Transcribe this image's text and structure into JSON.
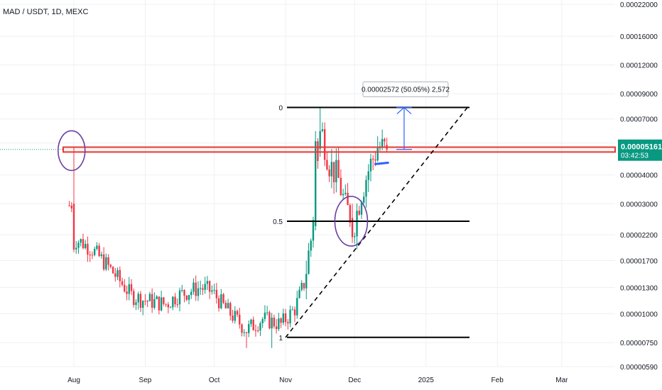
{
  "header": {
    "symbol_title": "MAD / USDT, 1D, MEXC"
  },
  "colors": {
    "up": "#089981",
    "down": "#f23645",
    "grid": "#eef0f3",
    "price_badge": "#089981",
    "zone": "#e53935",
    "circle": "#6a3fa0",
    "measure": "#2962ff"
  },
  "chart_data": {
    "type": "candlestick",
    "title": "MAD / USDT, 1D, MEXC",
    "y_scale": "log",
    "y_ticks": [
      "0.00022000",
      "0.00016000",
      "0.00012000",
      "0.00009000",
      "0.00007000",
      "0.00005500",
      "0.00004000",
      "0.00003000",
      "0.00002200",
      "0.00001700",
      "0.00001300",
      "0.00001000",
      "0.00000750",
      "0.00000590"
    ],
    "ylim": [
      5.9e-06,
      0.00022
    ],
    "x_ticks": [
      "Aug",
      "Sep",
      "Oct",
      "Nov",
      "Dec",
      "2025",
      "Feb",
      "Mar"
    ],
    "x_tick_dates": [
      "2024-08-01",
      "2024-09-01",
      "2024-10-01",
      "2024-11-01",
      "2024-12-01",
      "2025-01-01",
      "2025-02-01",
      "2025-03-01"
    ],
    "current_price": "0.00005161",
    "countdown": "03:42:53",
    "fib_levels": [
      {
        "label": "0",
        "value": 7.85e-05
      },
      {
        "label": "0.5",
        "value": 2.52e-05
      },
      {
        "label": "1",
        "value": 7.9e-06
      }
    ],
    "measure_label": "0.00002572 (50.05%) 2,572",
    "resistance_zone": [
      5.03e-05,
      5.28e-05
    ],
    "trendline": {
      "from": [
        "2024-11-01",
        7.9e-06
      ],
      "to": [
        "2025-01-19",
        7.85e-05
      ]
    },
    "series_summary": [
      {
        "date": "2024-07-30",
        "high": 5.28e-05,
        "low": 1.85e-05
      },
      {
        "date": "2024-09-14",
        "low": 9e-06
      },
      {
        "date": "2024-10-27",
        "low": 7.1e-06
      },
      {
        "date": "2024-11-18",
        "high": 7.85e-05
      },
      {
        "date": "2024-12-01",
        "low": 2.03e-05
      },
      {
        "date": "2024-12-13",
        "close": 5.161e-05
      }
    ]
  }
}
